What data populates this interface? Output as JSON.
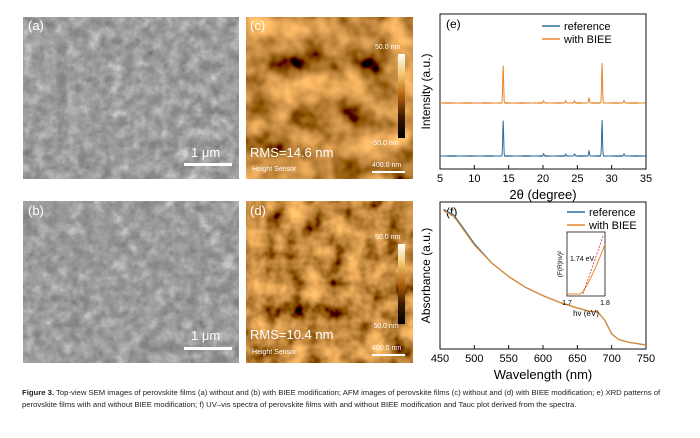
{
  "panels": {
    "a": {
      "label": "(a)",
      "scalebar": "1 μm"
    },
    "b": {
      "label": "(b)",
      "scalebar": "1 μm"
    },
    "c": {
      "label": "(c)",
      "rms": "RMS=14.6 nm",
      "sensor": "Height Sensor",
      "scale_top": "50.0 nm",
      "scale_bottom": "-50.0 nm",
      "scalebar": "400.0 nm"
    },
    "d": {
      "label": "(d)",
      "rms": "RMS=10.4 nm",
      "sensor": "Height Sensor",
      "scale_top": "50.0 nm",
      "scale_bottom": "-50.0 nm",
      "scalebar": "400.0 nm"
    }
  },
  "caption": {
    "figure_label": "Figure 3.",
    "text": "Top-view SEM images of perovskite films (a) without and (b) with BIEE modification; AFM images of perovskite films (c) without and (d) with BIEE modification; e) XRD patterns of perovskite films with and without BIEE modification; f) UV–vis spectra of perovskite films with and without BIEE modification and Tauc plot derived from the spectra."
  },
  "colors": {
    "reference": "#2f6e9e",
    "with_biee": "#e8872c"
  },
  "chart_data": [
    {
      "type": "line",
      "panel_label": "(e)",
      "xlabel": "2θ (degree)",
      "ylabel": "Intensity (a.u.)",
      "xlim": [
        5,
        35
      ],
      "xticks": [
        5,
        10,
        15,
        20,
        25,
        30,
        35
      ],
      "legend": "top-right",
      "peaks_2theta": [
        14.2,
        20.1,
        23.3,
        24.6,
        26.7,
        28.6,
        31.8
      ],
      "series": [
        {
          "name": "reference",
          "peak_heights": [
            0.85,
            0.05,
            0.04,
            0.05,
            0.12,
            0.85,
            0.05
          ]
        },
        {
          "name": "with BIEE",
          "peak_heights": [
            0.9,
            0.05,
            0.05,
            0.05,
            0.13,
            0.95,
            0.06
          ]
        }
      ]
    },
    {
      "type": "line",
      "panel_label": "(f)",
      "xlabel": "Wavelength (nm)",
      "ylabel": "Absorbance (a.u.)",
      "xlim": [
        450,
        750
      ],
      "xticks": [
        450,
        500,
        550,
        600,
        650,
        700,
        750
      ],
      "legend": "top-right",
      "x": [
        455,
        470,
        480,
        500,
        525,
        550,
        575,
        600,
        625,
        650,
        665,
        680,
        690,
        700,
        710,
        725,
        750
      ],
      "series": [
        {
          "name": "reference",
          "values": [
            0.99,
            0.95,
            0.88,
            0.74,
            0.6,
            0.5,
            0.42,
            0.36,
            0.31,
            0.27,
            0.25,
            0.24,
            0.18,
            0.08,
            0.04,
            0.02,
            0.0
          ]
        },
        {
          "name": "with BIEE",
          "values": [
            0.98,
            0.94,
            0.87,
            0.73,
            0.6,
            0.5,
            0.42,
            0.36,
            0.31,
            0.27,
            0.25,
            0.24,
            0.18,
            0.08,
            0.04,
            0.02,
            0.0
          ]
        }
      ],
      "inset": {
        "xlabel": "hν (eV)",
        "ylabel": "(F(R)hν)²",
        "xlim": [
          1.7,
          1.8
        ],
        "xticks": [
          "1.7",
          "1.8"
        ],
        "annotation": "1.74 eV"
      }
    }
  ]
}
